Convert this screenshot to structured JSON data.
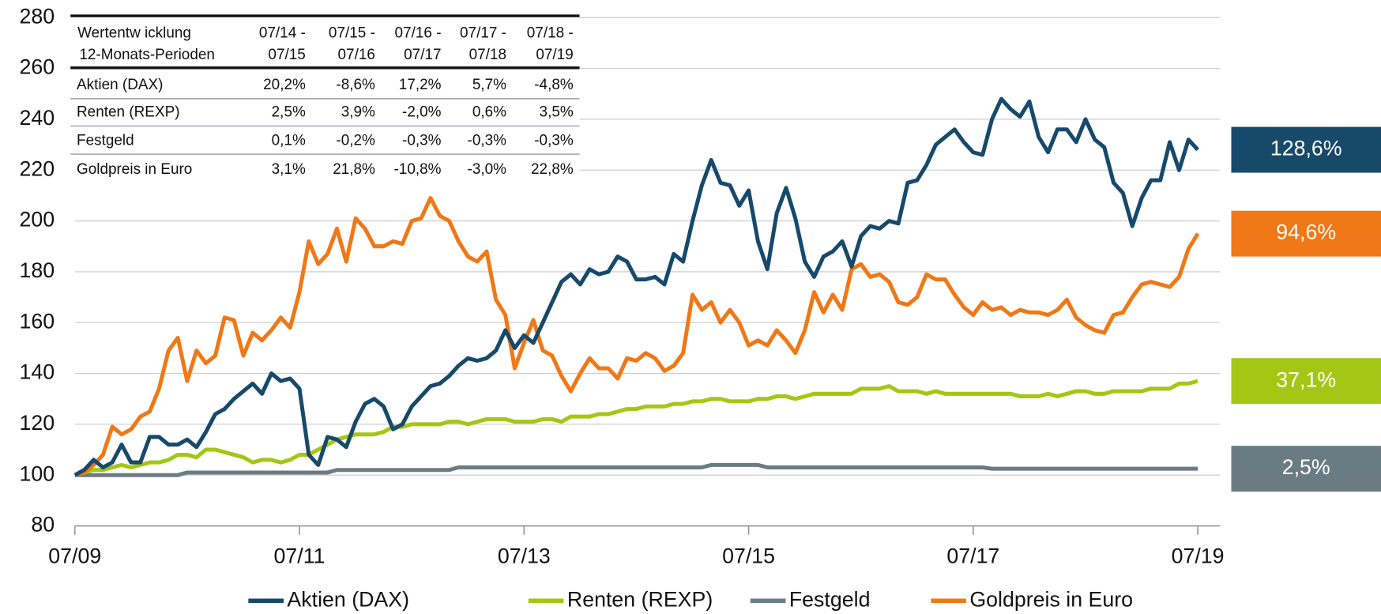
{
  "chart_data": {
    "type": "line",
    "x": [
      "07/09",
      "08/09",
      "09/09",
      "10/09",
      "11/09",
      "12/09",
      "01/10",
      "02/10",
      "03/10",
      "04/10",
      "05/10",
      "06/10",
      "07/10",
      "08/10",
      "09/10",
      "10/10",
      "11/10",
      "12/10",
      "01/11",
      "02/11",
      "03/11",
      "04/11",
      "05/11",
      "06/11",
      "07/11",
      "08/11",
      "09/11",
      "10/11",
      "11/11",
      "12/11",
      "01/12",
      "02/12",
      "03/12",
      "04/12",
      "05/12",
      "06/12",
      "07/12",
      "08/12",
      "09/12",
      "10/12",
      "11/12",
      "12/12",
      "01/13",
      "02/13",
      "03/13",
      "04/13",
      "05/13",
      "06/13",
      "07/13",
      "08/13",
      "09/13",
      "10/13",
      "11/13",
      "12/13",
      "01/14",
      "02/14",
      "03/14",
      "04/14",
      "05/14",
      "06/14",
      "07/14",
      "08/14",
      "09/14",
      "10/14",
      "11/14",
      "12/14",
      "01/15",
      "02/15",
      "03/15",
      "04/15",
      "05/15",
      "06/15",
      "07/15",
      "08/15",
      "09/15",
      "10/15",
      "11/15",
      "12/15",
      "01/16",
      "02/16",
      "03/16",
      "04/16",
      "05/16",
      "06/16",
      "07/16",
      "08/16",
      "09/16",
      "10/16",
      "11/16",
      "12/16",
      "01/17",
      "02/17",
      "03/17",
      "04/17",
      "05/17",
      "06/17",
      "07/17",
      "08/17",
      "09/17",
      "10/17",
      "11/17",
      "12/17",
      "01/18",
      "02/18",
      "03/18",
      "04/18",
      "05/18",
      "06/18",
      "07/18",
      "08/18",
      "09/18",
      "10/18",
      "11/18",
      "12/18",
      "01/19",
      "02/19",
      "03/19",
      "04/19",
      "05/19",
      "06/19",
      "07/19"
    ],
    "xticks": [
      "07/09",
      "07/11",
      "07/13",
      "07/15",
      "07/17",
      "07/19"
    ],
    "ylim": [
      80,
      280
    ],
    "yticks": [
      80,
      100,
      120,
      140,
      160,
      180,
      200,
      220,
      240,
      260,
      280
    ],
    "grid": true,
    "series": [
      {
        "name": "Aktien (DAX)",
        "color": "#17496b",
        "end_label": "128,6%",
        "values": [
          100,
          102,
          106,
          103,
          105,
          112,
          105,
          105,
          115,
          115,
          112,
          112,
          114,
          111,
          117,
          124,
          126,
          130,
          133,
          136,
          132,
          140,
          137,
          138,
          134,
          108,
          104,
          115,
          114,
          111,
          121,
          128,
          130,
          127,
          118,
          120,
          127,
          131,
          135,
          136,
          139,
          143,
          146,
          145,
          146,
          149,
          157,
          150,
          155,
          152,
          160,
          168,
          176,
          179,
          175,
          181,
          179,
          180,
          186,
          184,
          177,
          177,
          178,
          175,
          187,
          184,
          200,
          214,
          224,
          215,
          214,
          206,
          212,
          192,
          181,
          203,
          213,
          201,
          184,
          178,
          186,
          188,
          192,
          182,
          194,
          198,
          197,
          200,
          199,
          215,
          216,
          222,
          230,
          233,
          236,
          231,
          227,
          226,
          240,
          248,
          244,
          241,
          247,
          233,
          227,
          236,
          236,
          231,
          240,
          232,
          229,
          215,
          211,
          198,
          209,
          216,
          216,
          231,
          220,
          232,
          228
        ]
      },
      {
        "name": "Renten (REXP)",
        "color": "#a5c615",
        "end_label": "37,1%",
        "values": [
          100,
          101,
          102,
          102,
          103,
          104,
          103,
          104,
          105,
          105,
          106,
          108,
          108,
          107,
          110,
          110,
          109,
          108,
          107,
          105,
          106,
          106,
          105,
          106,
          108,
          108,
          110,
          112,
          114,
          115,
          116,
          116,
          116,
          117,
          119,
          119,
          120,
          120,
          120,
          120,
          121,
          121,
          120,
          121,
          122,
          122,
          122,
          121,
          121,
          121,
          122,
          122,
          121,
          123,
          123,
          123,
          124,
          124,
          125,
          126,
          126,
          127,
          127,
          127,
          128,
          128,
          129,
          129,
          130,
          130,
          129,
          129,
          129,
          130,
          130,
          131,
          131,
          130,
          131,
          132,
          132,
          132,
          132,
          132,
          134,
          134,
          134,
          135,
          133,
          133,
          133,
          132,
          133,
          132,
          132,
          132,
          132,
          132,
          132,
          132,
          132,
          131,
          131,
          131,
          132,
          131,
          132,
          133,
          133,
          132,
          132,
          133,
          133,
          133,
          133,
          134,
          134,
          134,
          136,
          136,
          137
        ]
      },
      {
        "name": "Festgeld",
        "color": "#6b7b82",
        "end_label": "2,5%",
        "values": [
          100,
          100,
          100,
          100,
          100,
          100,
          100,
          100,
          100,
          100,
          100,
          100,
          101,
          101,
          101,
          101,
          101,
          101,
          101,
          101,
          101,
          101,
          101,
          101,
          101,
          101,
          101,
          101,
          102,
          102,
          102,
          102,
          102,
          102,
          102,
          102,
          102,
          102,
          102,
          102,
          102,
          103,
          103,
          103,
          103,
          103,
          103,
          103,
          103,
          103,
          103,
          103,
          103,
          103,
          103,
          103,
          103,
          103,
          103,
          103,
          103,
          103,
          103,
          103,
          103,
          103,
          103,
          103,
          104,
          104,
          104,
          104,
          104,
          104,
          103,
          103,
          103,
          103,
          103,
          103,
          103,
          103,
          103,
          103,
          103,
          103,
          103,
          103,
          103,
          103,
          103,
          103,
          103,
          103,
          103,
          103,
          103,
          103,
          102.5,
          102.5,
          102.5,
          102.5,
          102.5,
          102.5,
          102.5,
          102.5,
          102.5,
          102.5,
          102.5,
          102.5,
          102.5,
          102.5,
          102.5,
          102.5,
          102.5,
          102.5,
          102.5,
          102.5,
          102.5,
          102.5,
          102.5
        ]
      },
      {
        "name": "Goldpreis in Euro",
        "color": "#f07816",
        "end_label": "94,6%",
        "values": [
          100,
          101,
          104,
          108,
          119,
          116,
          118,
          123,
          125,
          134,
          149,
          154,
          137,
          149,
          144,
          147,
          162,
          161,
          147,
          156,
          153,
          157,
          162,
          158,
          172,
          192,
          183,
          187,
          197,
          184,
          201,
          197,
          190,
          190,
          192,
          191,
          200,
          201,
          209,
          202,
          200,
          192,
          186,
          184,
          188,
          169,
          163,
          142,
          152,
          161,
          149,
          147,
          139,
          133,
          140,
          146,
          142,
          142,
          138,
          146,
          145,
          148,
          146,
          141,
          143,
          148,
          171,
          165,
          168,
          160,
          165,
          160,
          151,
          153,
          151,
          157,
          153,
          148,
          157,
          172,
          164,
          171,
          165,
          181,
          183,
          178,
          179,
          176,
          168,
          167,
          170,
          179,
          177,
          177,
          171,
          166,
          163,
          168,
          165,
          166,
          163,
          165,
          164,
          164,
          163,
          165,
          169,
          162,
          159,
          157,
          156,
          163,
          164,
          170,
          175,
          176,
          175,
          174,
          178,
          189,
          195
        ]
      }
    ],
    "table": {
      "corner": [
        "Wertentw icklung",
        "12-Monats-Perioden"
      ],
      "columns": [
        [
          "07/14 -",
          "07/15"
        ],
        [
          "07/15 -",
          "07/16"
        ],
        [
          "07/16 -",
          "07/17"
        ],
        [
          "07/17 -",
          "07/18"
        ],
        [
          "07/18 -",
          "07/19"
        ]
      ],
      "rows": [
        [
          "Aktien (DAX)",
          "20,2%",
          "-8,6%",
          "17,2%",
          "5,7%",
          "-4,8%"
        ],
        [
          "Renten (REXP)",
          "2,5%",
          "3,9%",
          "-2,0%",
          "0,6%",
          "3,5%"
        ],
        [
          "Festgeld",
          "0,1%",
          "-0,2%",
          "-0,3%",
          "-0,3%",
          "-0,3%"
        ],
        [
          "Goldpreis in Euro",
          "3,1%",
          "21,8%",
          "-10,8%",
          "-3,0%",
          "22,8%"
        ]
      ]
    }
  }
}
